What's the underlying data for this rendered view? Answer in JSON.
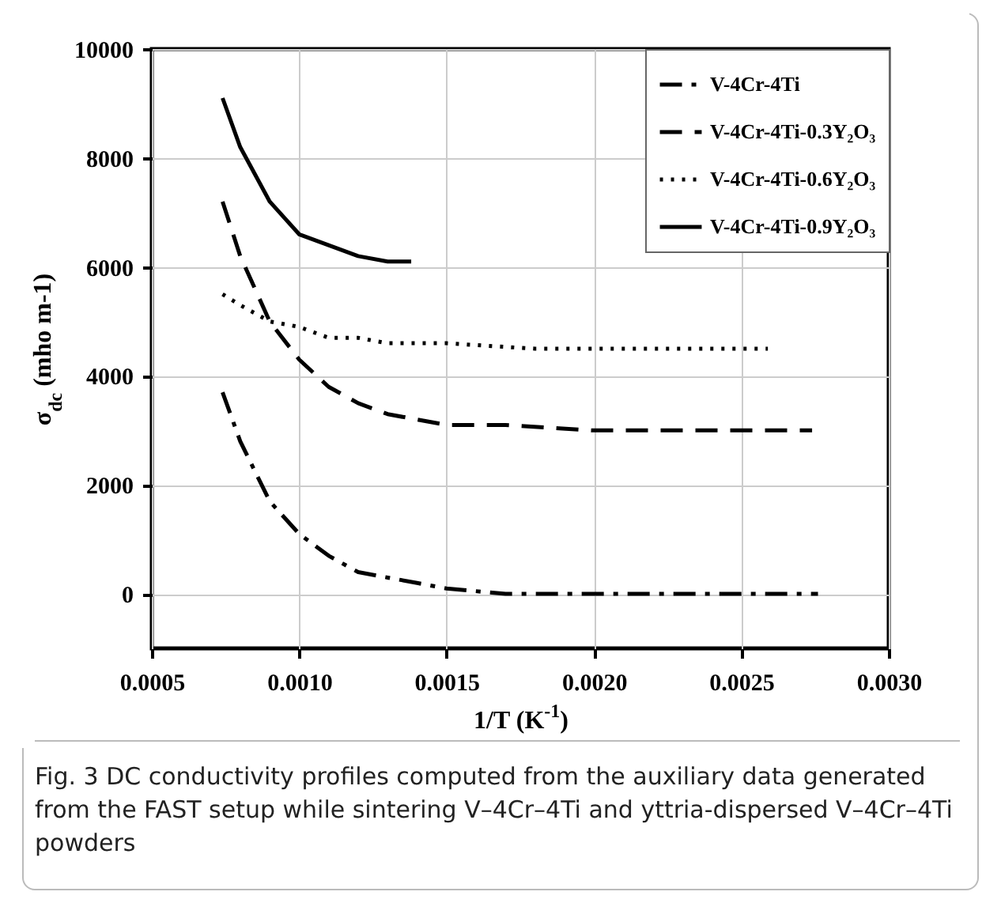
{
  "chart_data": {
    "type": "line",
    "xlabel": "1/T (K$^{-1}$)",
    "ylabel": "σ$_{dc}$ (mho m-1)",
    "xlim": [
      0.0005,
      0.003
    ],
    "xticks": [
      0.0005,
      {
        "value": 0.001,
        "label": "0.0010"
      },
      0.0015,
      {
        "value": 0.002,
        "label": "0.0020"
      },
      0.0025,
      {
        "value": 0.003,
        "label": "0.0030"
      }
    ],
    "ylim": [
      -1000,
      10000
    ],
    "yticks": [
      0,
      2000,
      4000,
      6000,
      8000,
      10000
    ],
    "grid": true,
    "legend": "top right",
    "series": [
      {
        "name": "V-4Cr-4Ti",
        "color": "#000000",
        "line_style": "dashdot",
        "x": [
          0.00074,
          0.0008,
          0.0009,
          0.001,
          0.0011,
          0.0012,
          0.0013,
          0.0014,
          0.0015,
          0.0017,
          0.002,
          0.00276
        ],
        "values": [
          3700,
          2800,
          1700,
          1100,
          700,
          400,
          300,
          200,
          100,
          0,
          0,
          0
        ]
      },
      {
        "name": "V-4Cr-4Ti-0.3Y₂O₃",
        "color": "#000000",
        "line_style": "dashed",
        "x": [
          0.00074,
          0.0008,
          0.0009,
          0.001,
          0.0011,
          0.0012,
          0.0013,
          0.0014,
          0.0015,
          0.0017,
          0.002,
          0.00274
        ],
        "values": [
          7200,
          6200,
          5000,
          4300,
          3800,
          3500,
          3300,
          3200,
          3100,
          3100,
          3000,
          3000
        ]
      },
      {
        "name": "V-4Cr-4Ti-0.6Y₂O₃",
        "color": "#000000",
        "line_style": "dotted",
        "x": [
          0.00074,
          0.0008,
          0.0009,
          0.001,
          0.0011,
          0.0012,
          0.0013,
          0.0015,
          0.0018,
          0.00259
        ],
        "values": [
          5500,
          5300,
          5000,
          4900,
          4700,
          4700,
          4600,
          4600,
          4500,
          4500
        ]
      },
      {
        "name": "V-4Cr-4Ti-0.9Y₂O₃",
        "color": "#000000",
        "line_style": "solid",
        "x": [
          0.00074,
          0.0008,
          0.0009,
          0.001,
          0.0011,
          0.0012,
          0.0013,
          0.00138
        ],
        "values": [
          9100,
          8200,
          7200,
          6600,
          6400,
          6200,
          6100,
          6100
        ]
      }
    ],
    "annotations": [
      "Fig. 3 DC conductivity profiles computed from the auxiliary data generated from the FAST setup while sintering V–4Cr–4Ti and yttria-dispersed V–4Cr–4Ti powders"
    ]
  }
}
